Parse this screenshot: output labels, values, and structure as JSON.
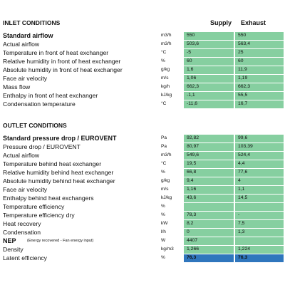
{
  "columns": [
    "Supply",
    "Exhaust"
  ],
  "inlet": {
    "title": "INLET CONDITIONS",
    "rows": [
      {
        "label": "Standard airflow",
        "unit": "m3/h",
        "supply": "550",
        "exhaust": "550"
      },
      {
        "label": "Actual airflow",
        "unit": "m3/h",
        "supply": "503,6",
        "exhaust": "563,4"
      },
      {
        "label": "Temperature in front of heat exchanger",
        "unit": "°C",
        "supply": "-5",
        "exhaust": "25"
      },
      {
        "label": "Relative humidity in front of heat exchanger",
        "unit": "%",
        "supply": "60",
        "exhaust": "60"
      },
      {
        "label": "Absolute humidity in front of heat exchanger",
        "unit": "g/kg",
        "supply": "1,6",
        "exhaust": "11,9"
      },
      {
        "label": "Face air velocity",
        "unit": "m/s",
        "supply": "1,06",
        "exhaust": "1,19"
      },
      {
        "label": "Mass flow",
        "unit": "kg/h",
        "supply": "662,3",
        "exhaust": "662,3"
      },
      {
        "label": "Enthalpy in front of heat exchanger",
        "unit": "kJ/kg",
        "supply": "-1,1",
        "exhaust": "55,5"
      },
      {
        "label": "Condensation temperature",
        "unit": "°C",
        "supply": "-11,6",
        "exhaust": "16,7"
      }
    ]
  },
  "outlet": {
    "title": "OUTLET CONDITIONS",
    "rows": [
      {
        "label": "Standard pressure drop  / EUROVENT",
        "unit": "Pa",
        "supply": "92,82",
        "exhaust": "99,6"
      },
      {
        "label": "Pressure drop   / EUROVENT",
        "unit": "Pa",
        "supply": "80,97",
        "exhaust": "103,39"
      },
      {
        "label": "Actual airflow",
        "unit": "m3/h",
        "supply": "549,6",
        "exhaust": "524,4"
      },
      {
        "label": "Temperature behind heat exchanger",
        "unit": "°C",
        "supply": "19,5",
        "exhaust": "4,4"
      },
      {
        "label": "Relative humidity behind heat exchanger",
        "unit": "%",
        "supply": "66,8",
        "exhaust": "77,6"
      },
      {
        "label": "Absolute humidity behind heat exchanger",
        "unit": "g/kg",
        "supply": "9,4",
        "exhaust": "4"
      },
      {
        "label": "Face air velocity",
        "unit": "m/s",
        "supply": "1,16",
        "exhaust": "1,1"
      },
      {
        "label": "Enthalpy behind heat exchangers",
        "unit": "kJ/kg",
        "supply": "43,6",
        "exhaust": "14,5"
      },
      {
        "label": "Temperature efficiency",
        "unit": "%",
        "supply": null,
        "exhaust": null
      },
      {
        "label": "Temperature efficiency dry",
        "unit": "%",
        "supply": "78,3",
        "exhaust": "-"
      },
      {
        "label": "Heat recovery",
        "unit": "kW",
        "supply": "8,2",
        "exhaust": "7,5"
      },
      {
        "label": "Condensation",
        "unit": "l/h",
        "supply": "0",
        "exhaust": "1,3"
      },
      {
        "label": "NEP",
        "note": "(Energy recovered - Fan energy input)",
        "unit": "W",
        "supply": "4407",
        "exhaust": null
      },
      {
        "label": "Density",
        "unit": "kg/m3",
        "supply": "1,266",
        "exhaust": "1,224"
      },
      {
        "label": "Latent efficiency",
        "unit": "%",
        "supply": "76,3",
        "exhaust": "76,3"
      }
    ]
  }
}
